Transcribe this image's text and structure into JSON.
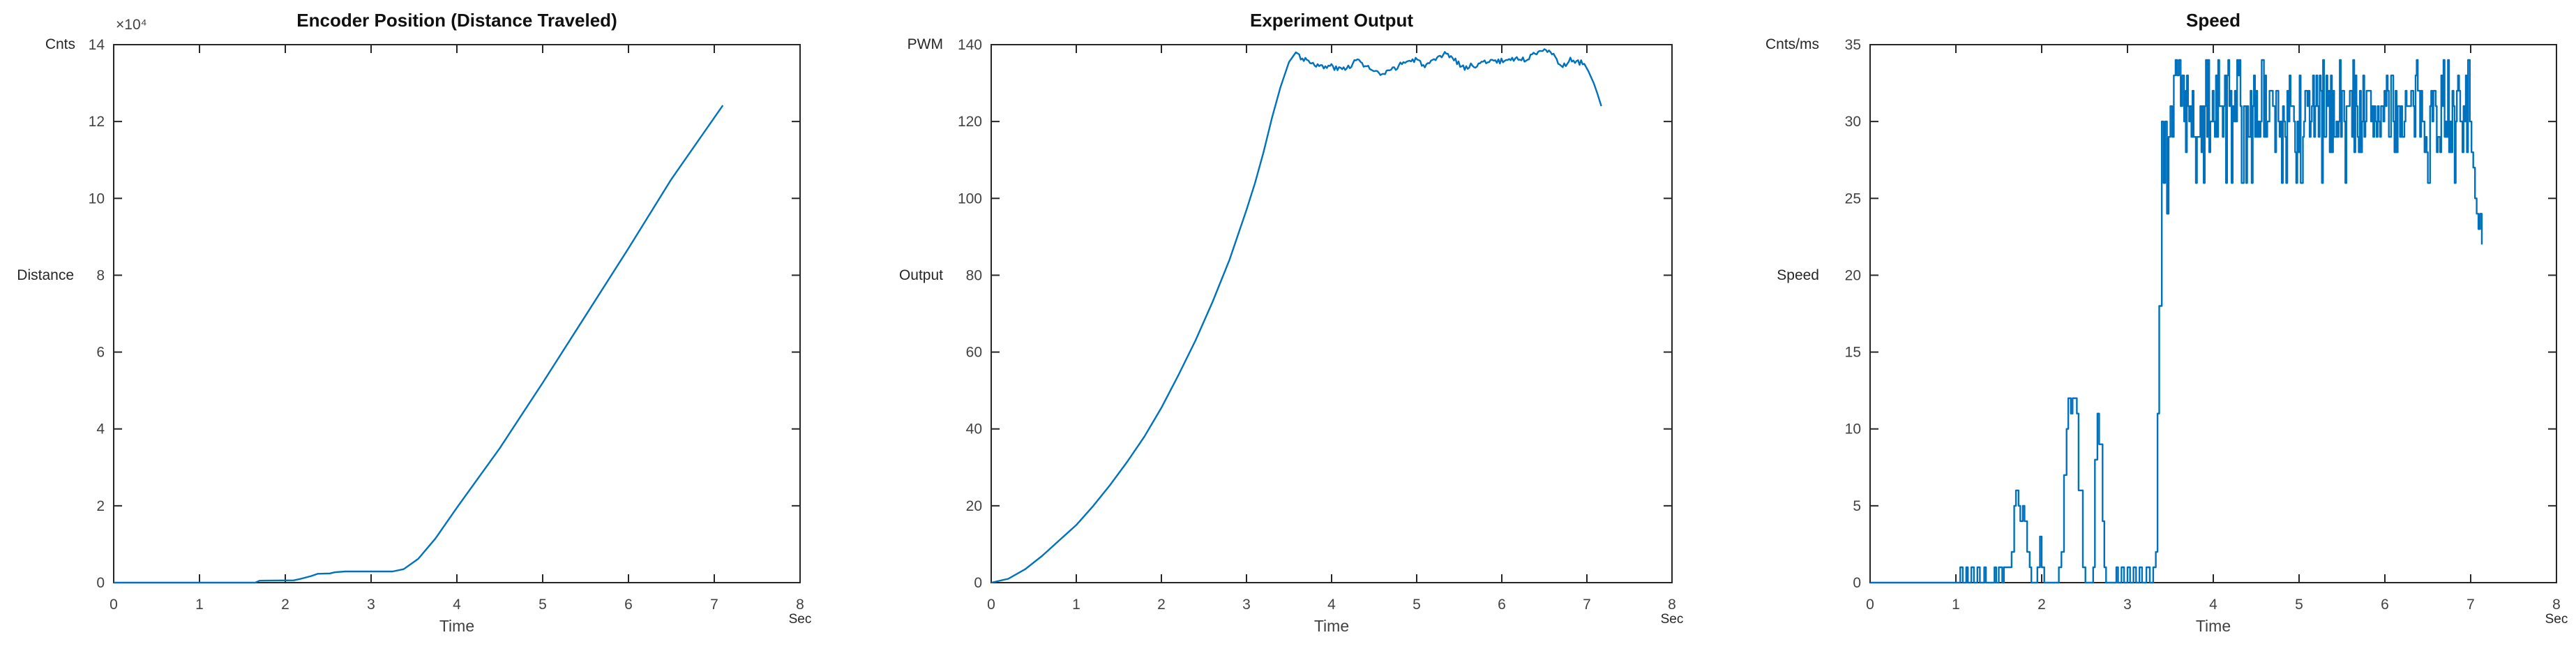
{
  "figure": {
    "background": "#ffffff",
    "axis_color": "#262626",
    "tick_label_color": "#424242",
    "line_color": "#0072BD"
  },
  "chart_data": [
    {
      "type": "line",
      "title": "Encoder Position (Distance Traveled)",
      "y_unit_label": "Cnts",
      "y_axis_name": "Distance",
      "y_name_at_tick": 8,
      "exponent_label": "×10⁴",
      "xlabel": "Time",
      "x_unit_label": "Sec",
      "xlim": [
        0,
        8
      ],
      "ylim": [
        0,
        14
      ],
      "x_ticks": [
        0,
        1,
        2,
        3,
        4,
        5,
        6,
        7,
        8
      ],
      "y_ticks": [
        0,
        2,
        4,
        6,
        8,
        10,
        12,
        14
      ],
      "grid": false,
      "line_color": "#0072BD",
      "series": {
        "segments": [
          {
            "type": "keys",
            "mode": "linear",
            "points": [
              [
                0,
                0
              ],
              [
                1.65,
                0
              ],
              [
                1.7,
                0.05
              ],
              [
                2.1,
                0.06
              ],
              [
                2.18,
                0.1
              ],
              [
                2.3,
                0.17
              ],
              [
                2.38,
                0.23
              ],
              [
                2.52,
                0.24
              ],
              [
                2.58,
                0.27
              ],
              [
                2.7,
                0.29
              ],
              [
                3.25,
                0.29
              ],
              [
                3.38,
                0.35
              ],
              [
                3.55,
                0.62
              ],
              [
                3.75,
                1.15
              ],
              [
                4.0,
                1.95
              ],
              [
                4.5,
                3.5
              ],
              [
                5.0,
                5.2
              ],
              [
                5.5,
                6.95
              ],
              [
                6.0,
                8.7
              ],
              [
                6.5,
                10.5
              ],
              [
                7.1,
                12.42
              ]
            ]
          }
        ]
      }
    },
    {
      "type": "line",
      "title": "Experiment Output",
      "y_unit_label": "PWM",
      "y_axis_name": "Output",
      "y_name_at_tick": 80,
      "exponent_label": "",
      "xlabel": "Time",
      "x_unit_label": "Sec",
      "xlim": [
        0,
        8
      ],
      "ylim": [
        0,
        140
      ],
      "x_ticks": [
        0,
        1,
        2,
        3,
        4,
        5,
        6,
        7,
        8
      ],
      "y_ticks": [
        0,
        20,
        40,
        60,
        80,
        100,
        120,
        140
      ],
      "grid": false,
      "line_color": "#0072BD",
      "series": {
        "segments": [
          {
            "type": "keys",
            "mode": "linear",
            "points": [
              [
                0,
                0
              ],
              [
                0.2,
                1
              ],
              [
                0.4,
                3.5
              ],
              [
                0.6,
                7
              ],
              [
                0.8,
                11
              ],
              [
                1.0,
                15
              ],
              [
                1.2,
                20
              ],
              [
                1.4,
                25.5
              ],
              [
                1.6,
                31.5
              ],
              [
                1.8,
                38
              ],
              [
                2.0,
                45.5
              ],
              [
                2.2,
                54
              ],
              [
                2.4,
                63
              ],
              [
                2.6,
                73
              ],
              [
                2.8,
                84
              ],
              [
                3.0,
                97
              ],
              [
                3.1,
                104
              ],
              [
                3.2,
                112
              ],
              [
                3.3,
                121
              ],
              [
                3.4,
                129
              ],
              [
                3.5,
                135.5
              ],
              [
                3.58,
                138
              ],
              [
                3.65,
                136.5
              ],
              [
                3.72,
                136
              ],
              [
                3.8,
                135
              ],
              [
                3.9,
                134
              ],
              [
                4.0,
                134.5
              ],
              [
                4.08,
                133.5
              ],
              [
                4.18,
                134
              ],
              [
                4.3,
                136
              ],
              [
                4.4,
                134.5
              ],
              [
                4.5,
                133
              ],
              [
                4.6,
                132
              ],
              [
                4.72,
                133.5
              ],
              [
                4.85,
                135.5
              ],
              [
                5.0,
                136
              ],
              [
                5.1,
                134.5
              ],
              [
                5.2,
                135.5
              ],
              [
                5.35,
                137.8
              ],
              [
                5.45,
                136
              ],
              [
                5.55,
                134
              ],
              [
                5.65,
                134.5
              ],
              [
                5.75,
                135
              ],
              [
                5.85,
                136
              ],
              [
                5.95,
                135.5
              ],
              [
                6.05,
                136
              ],
              [
                6.15,
                136.5
              ],
              [
                6.25,
                136
              ],
              [
                6.35,
                137
              ],
              [
                6.45,
                138.8
              ],
              [
                6.52,
                139
              ],
              [
                6.58,
                138
              ],
              [
                6.65,
                135.5
              ],
              [
                6.72,
                134.5
              ],
              [
                6.8,
                136
              ],
              [
                6.9,
                135.5
              ],
              [
                6.97,
                135
              ],
              [
                7.02,
                133
              ],
              [
                7.08,
                130
              ],
              [
                7.12,
                127.5
              ],
              [
                7.17,
                124
              ]
            ],
            "jitter": {
              "t0": 3.62,
              "t1": 6.95,
              "dt": 0.018,
              "amp": 0.7,
              "seed": 3
            }
          }
        ]
      }
    },
    {
      "type": "line",
      "title": "Speed",
      "y_unit_label": "Cnts/ms",
      "y_axis_name": "Speed",
      "y_name_at_tick": 20,
      "exponent_label": "",
      "xlabel": "Time",
      "x_unit_label": "Sec",
      "xlim": [
        0,
        8
      ],
      "ylim": [
        0,
        35
      ],
      "x_ticks": [
        0,
        1,
        2,
        3,
        4,
        5,
        6,
        7,
        8
      ],
      "y_ticks": [
        0,
        5,
        10,
        15,
        20,
        25,
        30,
        35
      ],
      "grid": false,
      "line_color": "#0072BD",
      "series": {
        "segments": [
          {
            "type": "flat",
            "t0": 0,
            "t1": 1.02,
            "v": 0
          },
          {
            "type": "keys",
            "mode": "step",
            "points": [
              [
                1.05,
                1
              ],
              [
                1.08,
                0
              ],
              [
                1.12,
                1
              ],
              [
                1.14,
                0
              ],
              [
                1.18,
                1
              ],
              [
                1.21,
                0
              ],
              [
                1.25,
                1
              ],
              [
                1.28,
                0
              ],
              [
                1.33,
                1
              ],
              [
                1.35,
                0
              ],
              [
                1.45,
                1
              ],
              [
                1.47,
                0
              ],
              [
                1.5,
                1
              ],
              [
                1.54,
                0
              ],
              [
                1.56,
                1
              ],
              [
                1.63,
                1
              ],
              [
                1.65,
                2
              ],
              [
                1.68,
                5
              ],
              [
                1.7,
                6
              ],
              [
                1.73,
                5
              ],
              [
                1.75,
                4
              ],
              [
                1.78,
                5
              ],
              [
                1.8,
                4
              ],
              [
                1.83,
                2
              ],
              [
                1.86,
                1
              ],
              [
                1.88,
                0
              ],
              [
                1.95,
                1
              ],
              [
                1.98,
                3
              ],
              [
                2.0,
                1
              ],
              [
                2.03,
                0
              ],
              [
                2.2,
                1
              ],
              [
                2.23,
                2
              ],
              [
                2.26,
                7
              ],
              [
                2.29,
                10
              ],
              [
                2.31,
                12
              ],
              [
                2.34,
                11
              ],
              [
                2.36,
                12
              ],
              [
                2.39,
                12
              ],
              [
                2.41,
                11
              ],
              [
                2.43,
                6
              ],
              [
                2.46,
                6
              ],
              [
                2.48,
                1
              ],
              [
                2.51,
                0
              ],
              [
                2.6,
                1
              ],
              [
                2.62,
                8
              ],
              [
                2.65,
                11
              ],
              [
                2.67,
                9
              ],
              [
                2.69,
                9
              ],
              [
                2.71,
                4
              ],
              [
                2.73,
                1
              ],
              [
                2.75,
                0
              ],
              [
                2.87,
                1
              ],
              [
                2.89,
                0
              ],
              [
                2.93,
                1
              ],
              [
                2.96,
                0
              ],
              [
                3.0,
                1
              ],
              [
                3.03,
                0
              ],
              [
                3.07,
                1
              ],
              [
                3.1,
                0
              ],
              [
                3.14,
                1
              ],
              [
                3.17,
                0
              ],
              [
                3.22,
                1
              ],
              [
                3.26,
                0
              ],
              [
                3.3,
                1
              ],
              [
                3.33,
                2
              ],
              [
                3.35,
                11
              ],
              [
                3.37,
                18
              ],
              [
                3.4,
                30
              ],
              [
                3.42,
                26
              ],
              [
                3.44,
                30
              ],
              [
                3.46,
                24
              ],
              [
                3.48,
                29
              ],
              [
                3.5,
                31
              ],
              [
                3.52,
                29
              ],
              [
                3.54,
                33
              ],
              [
                3.56,
                34
              ],
              [
                3.58,
                33
              ],
              [
                3.6,
                34
              ],
              [
                3.62,
                31
              ],
              [
                3.64,
                33
              ],
              [
                3.66,
                30
              ],
              [
                3.68,
                32
              ]
            ]
          },
          {
            "type": "noise",
            "t0": 3.68,
            "t1": 6.97,
            "dt": 0.013,
            "min": 28,
            "max": 33,
            "round": true,
            "hi": 34,
            "lo": 26,
            "rare": 0.045,
            "seed": 7
          },
          {
            "type": "keys",
            "mode": "step",
            "points": [
              [
                6.99,
                30
              ],
              [
                7.01,
                28
              ],
              [
                7.03,
                27
              ],
              [
                7.05,
                25
              ],
              [
                7.07,
                24
              ],
              [
                7.09,
                23
              ],
              [
                7.11,
                24
              ],
              [
                7.13,
                22
              ]
            ]
          }
        ]
      }
    }
  ]
}
